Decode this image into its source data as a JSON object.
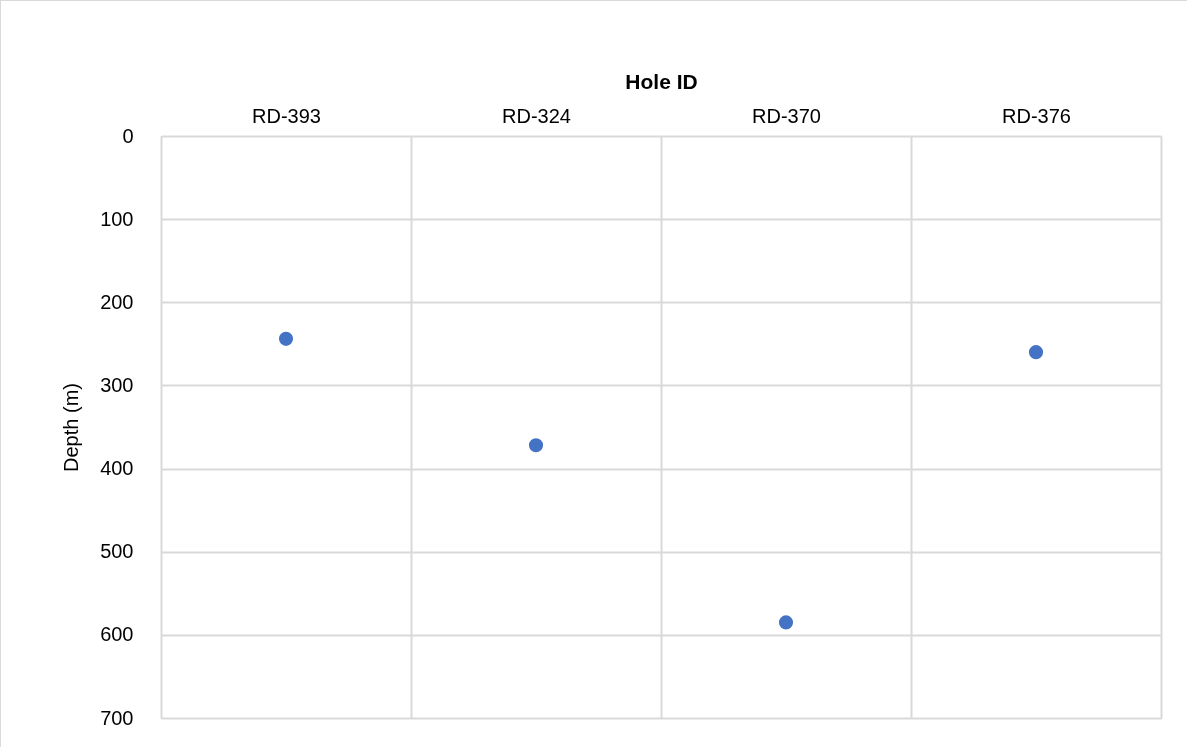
{
  "chart_data": {
    "type": "scatter",
    "xlabel": "Hole ID",
    "ylabel": "Depth (m)",
    "categories": [
      "RD-393",
      "RD-324",
      "RD-370",
      "RD-376"
    ],
    "series": [
      {
        "color": "#4472c4",
        "values": [
          244,
          372,
          585,
          260
        ]
      }
    ],
    "ylim": [
      700,
      0
    ],
    "yticks": [
      0,
      100,
      200,
      300,
      400,
      500,
      600,
      700
    ],
    "grid": true,
    "marker": "circle"
  }
}
